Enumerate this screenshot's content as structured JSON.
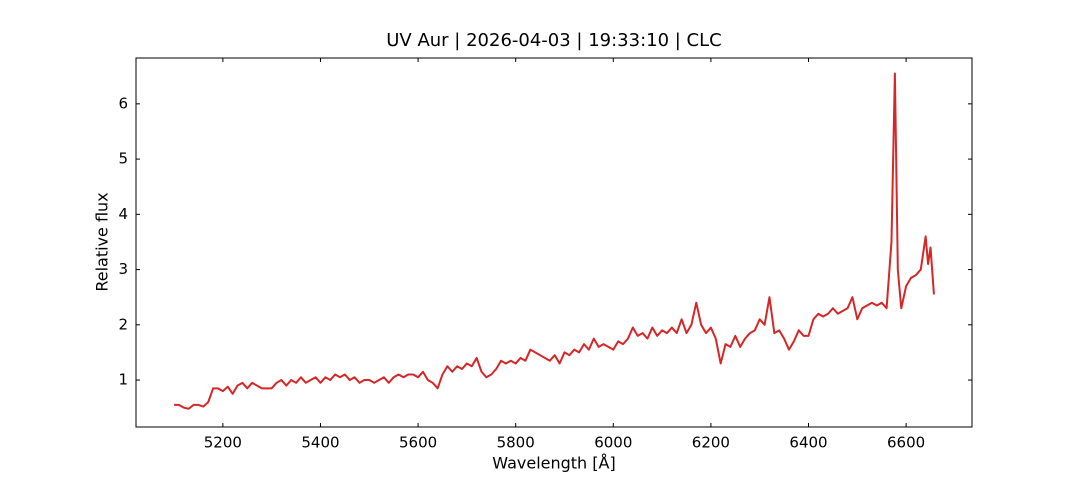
{
  "chart_data": {
    "type": "line",
    "title": "UV Aur | 2026-04-03 | 19:33:10 | CLC",
    "xlabel": "Wavelength [Å]",
    "ylabel": "Relative flux",
    "xlim": [
      5022,
      6735
    ],
    "ylim": [
      0.15,
      6.83
    ],
    "xticks": [
      5200,
      5400,
      5600,
      5800,
      6000,
      6200,
      6400,
      6600
    ],
    "yticks": [
      1,
      2,
      3,
      4,
      5,
      6
    ],
    "color": "#d62728",
    "x": [
      5100,
      5110,
      5120,
      5130,
      5140,
      5150,
      5160,
      5170,
      5180,
      5190,
      5200,
      5210,
      5220,
      5230,
      5240,
      5250,
      5260,
      5270,
      5280,
      5290,
      5300,
      5310,
      5320,
      5330,
      5340,
      5350,
      5360,
      5370,
      5380,
      5390,
      5400,
      5410,
      5420,
      5430,
      5440,
      5450,
      5460,
      5470,
      5480,
      5490,
      5500,
      5510,
      5520,
      5530,
      5540,
      5550,
      5560,
      5570,
      5580,
      5590,
      5600,
      5610,
      5620,
      5630,
      5640,
      5650,
      5660,
      5670,
      5680,
      5690,
      5700,
      5710,
      5720,
      5730,
      5740,
      5750,
      5760,
      5770,
      5780,
      5790,
      5800,
      5810,
      5820,
      5830,
      5840,
      5850,
      5860,
      5870,
      5880,
      5890,
      5900,
      5910,
      5920,
      5930,
      5940,
      5950,
      5960,
      5970,
      5980,
      5990,
      6000,
      6010,
      6020,
      6030,
      6040,
      6050,
      6060,
      6070,
      6080,
      6090,
      6100,
      6110,
      6120,
      6130,
      6140,
      6150,
      6160,
      6170,
      6180,
      6190,
      6200,
      6210,
      6220,
      6230,
      6240,
      6250,
      6260,
      6270,
      6280,
      6290,
      6300,
      6310,
      6320,
      6330,
      6340,
      6350,
      6360,
      6370,
      6380,
      6390,
      6400,
      6410,
      6420,
      6430,
      6440,
      6450,
      6460,
      6470,
      6480,
      6490,
      6500,
      6510,
      6520,
      6530,
      6540,
      6550,
      6560,
      6570,
      6577,
      6583,
      6590,
      6600,
      6610,
      6620,
      6630,
      6640,
      6645,
      6650,
      6657
    ],
    "values": [
      0.55,
      0.55,
      0.5,
      0.48,
      0.55,
      0.55,
      0.52,
      0.6,
      0.85,
      0.85,
      0.8,
      0.88,
      0.75,
      0.9,
      0.95,
      0.85,
      0.95,
      0.9,
      0.85,
      0.85,
      0.85,
      0.95,
      1,
      0.9,
      1,
      0.95,
      1.05,
      0.95,
      1,
      1.05,
      0.95,
      1.05,
      1,
      1.1,
      1.05,
      1.1,
      1,
      1.05,
      0.95,
      1,
      1,
      0.95,
      1,
      1.05,
      0.95,
      1.05,
      1.1,
      1.05,
      1.1,
      1.1,
      1.05,
      1.15,
      1,
      0.95,
      0.85,
      1.1,
      1.25,
      1.15,
      1.25,
      1.2,
      1.3,
      1.25,
      1.4,
      1.15,
      1.05,
      1.1,
      1.2,
      1.35,
      1.3,
      1.35,
      1.3,
      1.4,
      1.35,
      1.55,
      1.5,
      1.45,
      1.4,
      1.35,
      1.45,
      1.3,
      1.5,
      1.45,
      1.55,
      1.5,
      1.65,
      1.55,
      1.75,
      1.6,
      1.65,
      1.6,
      1.55,
      1.7,
      1.65,
      1.75,
      1.95,
      1.8,
      1.85,
      1.75,
      1.95,
      1.8,
      1.9,
      1.85,
      1.95,
      1.85,
      2.1,
      1.85,
      2,
      2.4,
      2,
      1.85,
      1.95,
      1.75,
      1.3,
      1.65,
      1.6,
      1.8,
      1.6,
      1.75,
      1.85,
      1.9,
      2.1,
      2,
      2.5,
      1.85,
      1.9,
      1.75,
      1.55,
      1.7,
      1.9,
      1.8,
      1.8,
      2.1,
      2.2,
      2.15,
      2.2,
      2.3,
      2.2,
      2.25,
      2.3,
      2.5,
      2.1,
      2.3,
      2.35,
      2.4,
      2.35,
      2.4,
      2.3,
      3.5,
      6.55,
      3.0,
      2.3,
      2.7,
      2.85,
      2.9,
      3.0,
      3.6,
      3.1,
      3.4,
      2.55
    ]
  }
}
